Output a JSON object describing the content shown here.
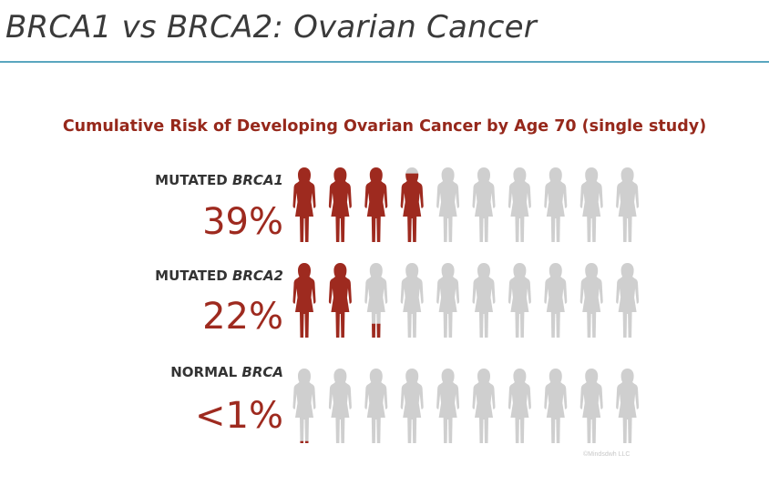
{
  "slide": {
    "title": "BRCA1 vs BRCA2: Ovarian Cancer",
    "credit": "©Mindsdwh LLC"
  },
  "colors": {
    "filled": "#9e2a1f",
    "empty": "#cfcfcf",
    "title_text": "#96281b",
    "rule": "#5aa6bf"
  },
  "chart_data": {
    "type": "pictograph",
    "title": "Cumulative Risk of Developing Ovarian Cancer by Age 70 (single study)",
    "icons_per_row": 10,
    "icon": "woman-figure-icon",
    "rows": [
      {
        "label_prefix": "MUTATED ",
        "label_gene": "BRCA1",
        "value_text": "39%",
        "value": 39
      },
      {
        "label_prefix": "MUTATED ",
        "label_gene": "BRCA2",
        "value_text": "22%",
        "value": 22
      },
      {
        "label_prefix": "NORMAL ",
        "label_gene": "BRCA",
        "value_text": "<1%",
        "value": 0.5
      }
    ]
  }
}
